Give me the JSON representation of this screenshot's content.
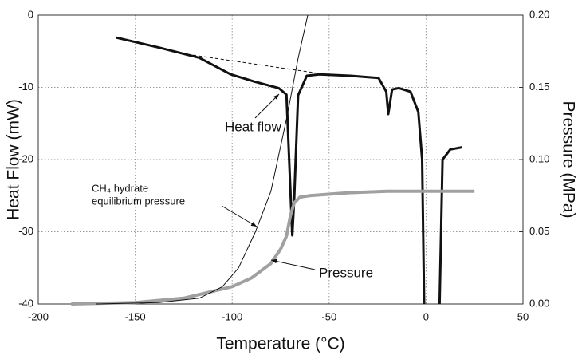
{
  "chart_data": {
    "type": "line",
    "x_label": "Temperature (°C)",
    "y_label": "Heat Flow (mW)",
    "y2_label": "Pressure (MPa)",
    "xlim": [
      -200,
      50
    ],
    "xticks": [
      -200,
      -150,
      -100,
      -50,
      0,
      50
    ],
    "ylim": [
      -40,
      0
    ],
    "yticks": [
      -40,
      -30,
      -20,
      -10,
      0
    ],
    "y2lim": [
      0,
      0.2
    ],
    "y2ticks": [
      {
        "value": 0,
        "label": "0.00"
      },
      {
        "value": 0.05,
        "label": "0.05"
      },
      {
        "value": 0.1,
        "label": "0.10"
      },
      {
        "value": 0.15,
        "label": "0.15"
      },
      {
        "value": 0.2,
        "label": "0.20"
      }
    ],
    "grid": true,
    "series": [
      {
        "name": "Heat flow",
        "color": "#111111",
        "axis": "y",
        "x": [
          -160,
          -137.7,
          -117,
          -100.8,
          -88.5,
          -76,
          -72,
          -69,
          -68,
          -66,
          -61.5,
          -55,
          -39,
          -24.5,
          -20.5,
          -19.5,
          -17.5,
          -14,
          -8,
          -4,
          -2,
          -1,
          null,
          7,
          8.5,
          12.5,
          18.5
        ],
        "values": [
          -3.1,
          -4.5,
          -5.9,
          -8.2,
          -9.2,
          -10.1,
          -11,
          -30.5,
          -25.5,
          -11.1,
          -8.4,
          -8.2,
          -8.4,
          -8.7,
          -10.6,
          -13.7,
          -10.3,
          -10.1,
          -10.6,
          -13.4,
          -20,
          -40,
          null,
          -40,
          -20,
          -18.6,
          -18.3
        ]
      },
      {
        "name": "Pressure",
        "color": "#a0a0a0",
        "axis": "y2",
        "x": [
          -183,
          -150,
          -125,
          -100,
          -90,
          -80,
          -75,
          -72,
          -70,
          -68,
          -65,
          -60,
          -40,
          -20,
          0,
          25
        ],
        "values": [
          0,
          0.001,
          0.004,
          0.012,
          0.018,
          0.028,
          0.038,
          0.047,
          0.061,
          0.07,
          0.074,
          0.075,
          0.077,
          0.078,
          0.078,
          0.078
        ]
      },
      {
        "name": "CH₄ hydrate equilibrium pressure",
        "color": "#111111",
        "axis": "y2",
        "x": [
          -170,
          -138,
          -117,
          -105,
          -96.7,
          -88,
          -80,
          -72,
          -66,
          -61
        ],
        "values": [
          0,
          0.001,
          0.004,
          0.012,
          0.025,
          0.05,
          0.078,
          0.128,
          0.17,
          0.2
        ]
      },
      {
        "color": "#111111",
        "axis": "y",
        "dashed": true,
        "x": [
          -128.7,
          -54.5
        ],
        "values": [
          -5.2,
          -8.1
        ]
      }
    ],
    "annotations": [
      "Heat flow",
      "CH₄ hydrate",
      "equilibrium pressure",
      "Pressure"
    ]
  }
}
